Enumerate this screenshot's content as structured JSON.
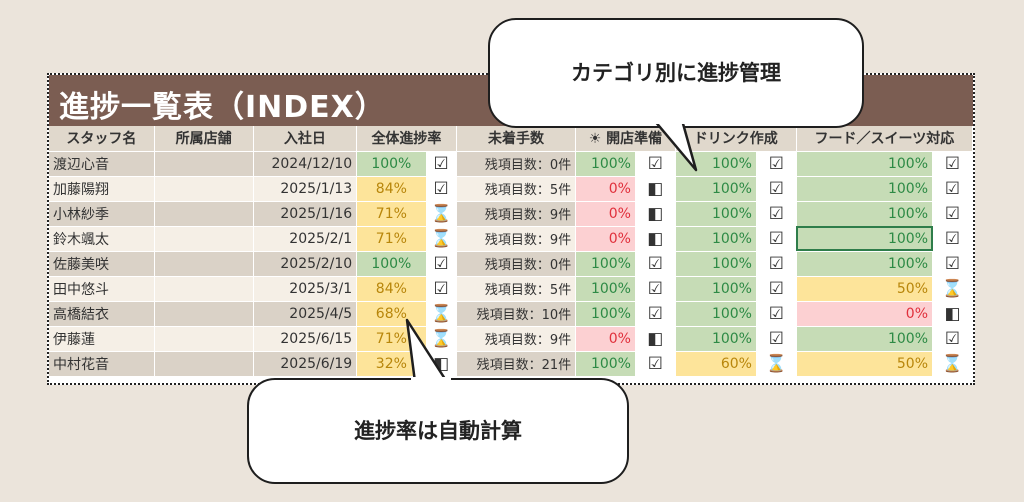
{
  "sheet": {
    "title": "進捗一覧表（INDEX）",
    "headers": {
      "staff": "スタッフ名",
      "store": "所属店舗",
      "join_date": "入社日",
      "overall": "全体進捗率",
      "unfinished": "未着手数",
      "opening": "☀ 開店準備",
      "drink": "ドリンク作成",
      "food": "フード／スイーツ対応"
    },
    "rows": [
      {
        "name": "渡辺心音",
        "store": "",
        "date": "2024/12/10",
        "overall": "100%",
        "overall_icon": "☑",
        "remaining": "残項目数：0件",
        "opening": "100%",
        "opening_icon": "☑",
        "drink": "100%",
        "drink_icon": "☑",
        "food": "100%",
        "food_icon": "☑"
      },
      {
        "name": "加藤陽翔",
        "store": "",
        "date": "2025/1/13",
        "overall": "84%",
        "overall_icon": "☑",
        "remaining": "残項目数：5件",
        "opening": "0%",
        "opening_icon": "◧",
        "drink": "100%",
        "drink_icon": "☑",
        "food": "100%",
        "food_icon": "☑"
      },
      {
        "name": "小林紗季",
        "store": "",
        "date": "2025/1/16",
        "overall": "71%",
        "overall_icon": "⌛",
        "remaining": "残項目数：9件",
        "opening": "0%",
        "opening_icon": "◧",
        "drink": "100%",
        "drink_icon": "☑",
        "food": "100%",
        "food_icon": "☑"
      },
      {
        "name": "鈴木颯太",
        "store": "",
        "date": "2025/2/1",
        "overall": "71%",
        "overall_icon": "⌛",
        "remaining": "残項目数：9件",
        "opening": "0%",
        "opening_icon": "◧",
        "drink": "100%",
        "drink_icon": "☑",
        "food": "100%",
        "food_icon": "☑"
      },
      {
        "name": "佐藤美咲",
        "store": "",
        "date": "2025/2/10",
        "overall": "100%",
        "overall_icon": "☑",
        "remaining": "残項目数：0件",
        "opening": "100%",
        "opening_icon": "☑",
        "drink": "100%",
        "drink_icon": "☑",
        "food": "100%",
        "food_icon": "☑"
      },
      {
        "name": "田中悠斗",
        "store": "",
        "date": "2025/3/1",
        "overall": "84%",
        "overall_icon": "☑",
        "remaining": "残項目数：5件",
        "opening": "100%",
        "opening_icon": "☑",
        "drink": "100%",
        "drink_icon": "☑",
        "food": "50%",
        "food_icon": "⌛"
      },
      {
        "name": "高橋結衣",
        "store": "",
        "date": "2025/4/5",
        "overall": "68%",
        "overall_icon": "⌛",
        "remaining": "残項目数：10件",
        "opening": "100%",
        "opening_icon": "☑",
        "drink": "100%",
        "drink_icon": "☑",
        "food": "0%",
        "food_icon": "◧"
      },
      {
        "name": "伊藤蓮",
        "store": "",
        "date": "2025/6/15",
        "overall": "71%",
        "overall_icon": "⌛",
        "remaining": "残項目数：9件",
        "opening": "0%",
        "opening_icon": "◧",
        "drink": "100%",
        "drink_icon": "☑",
        "food": "100%",
        "food_icon": "☑"
      },
      {
        "name": "中村花音",
        "store": "",
        "date": "2025/6/19",
        "overall": "32%",
        "overall_icon": "◧",
        "remaining": "残項目数：21件",
        "opening": "100%",
        "opening_icon": "☑",
        "drink": "60%",
        "drink_icon": "⌛",
        "food": "50%",
        "food_icon": "⌛"
      }
    ]
  },
  "callouts": {
    "top": "カテゴリ別に進捗管理",
    "bottom": "進捗率は自動計算"
  },
  "colors": {
    "title_bg": "#7b5d52",
    "good": "#c6dcb6",
    "warn": "#fde49a",
    "bad": "#fcd0d2"
  }
}
